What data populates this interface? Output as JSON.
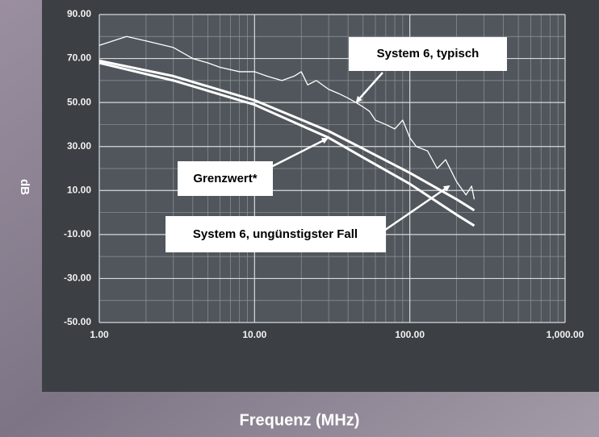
{
  "chart_data": {
    "type": "line",
    "x_label": "Frequenz (MHz)",
    "y_label": "dB",
    "xlim": [
      1,
      1000
    ],
    "xscale": "log",
    "xticks": [
      {
        "value": 1,
        "label": "1.00"
      },
      {
        "value": 10,
        "label": "10.00"
      },
      {
        "value": 100,
        "label": "100.00"
      },
      {
        "value": 1000,
        "label": "1,000.00"
      }
    ],
    "ylim": [
      -50,
      90
    ],
    "yticks": [
      {
        "value": 90,
        "label": "90.00"
      },
      {
        "value": 70,
        "label": "70.00"
      },
      {
        "value": 50,
        "label": "50.00"
      },
      {
        "value": 30,
        "label": "30.00"
      },
      {
        "value": 10,
        "label": "10.00"
      },
      {
        "value": -10,
        "label": "-10.00"
      },
      {
        "value": -30,
        "label": "-30.00"
      },
      {
        "value": -50,
        "label": "-50.00"
      }
    ],
    "grid": true,
    "series": [
      {
        "name": "System 6, typisch",
        "color": "#ffffff",
        "x": [
          1,
          1.5,
          2,
          3,
          4,
          5,
          6,
          8,
          10,
          12,
          15,
          18,
          20,
          22,
          25,
          30,
          35,
          40,
          45,
          50,
          55,
          60,
          70,
          80,
          90,
          100,
          110,
          130,
          150,
          170,
          200,
          230,
          250,
          260
        ],
        "values": [
          76,
          80,
          78,
          75,
          70,
          68,
          66,
          64,
          64,
          62,
          60,
          62,
          64,
          58,
          60,
          56,
          54,
          52,
          50,
          48,
          46,
          42,
          40,
          38,
          42,
          34,
          30,
          28,
          20,
          24,
          14,
          8,
          12,
          6
        ]
      },
      {
        "name": "Grenzwert*",
        "color": "#ffffff",
        "x": [
          1,
          3,
          10,
          30,
          50,
          100,
          200,
          260
        ],
        "values": [
          69,
          62,
          51,
          37,
          29,
          18,
          6,
          1
        ]
      },
      {
        "name": "System 6, ungünstigster Fall",
        "color": "#ffffff",
        "x": [
          1,
          3,
          10,
          30,
          50,
          100,
          200,
          260
        ],
        "values": [
          68,
          60,
          49,
          34,
          25,
          13,
          -1,
          -6
        ]
      }
    ]
  }
}
